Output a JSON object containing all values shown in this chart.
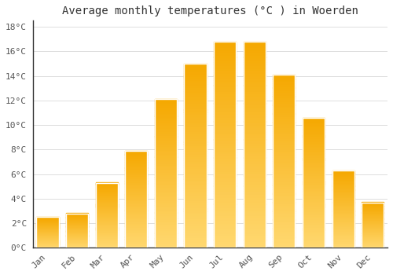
{
  "title": "Average monthly temperatures (°C ) in Woerden",
  "months": [
    "Jan",
    "Feb",
    "Mar",
    "Apr",
    "May",
    "Jun",
    "Jul",
    "Aug",
    "Sep",
    "Oct",
    "Nov",
    "Dec"
  ],
  "temperatures": [
    2.5,
    2.8,
    5.3,
    7.9,
    12.1,
    15.0,
    16.8,
    16.8,
    14.1,
    10.6,
    6.3,
    3.7
  ],
  "bar_color_top": "#F5A800",
  "bar_color_bottom": "#FFD870",
  "bar_edge_color": "#DDDDDD",
  "background_color": "#FFFFFF",
  "grid_color": "#DDDDDD",
  "title_fontsize": 10,
  "tick_fontsize": 8,
  "ylim": [
    0,
    18.5
  ],
  "yticks": [
    0,
    2,
    4,
    6,
    8,
    10,
    12,
    14,
    16,
    18
  ],
  "ytick_labels": [
    "0°C",
    "2°C",
    "4°C",
    "6°C",
    "8°C",
    "10°C",
    "12°C",
    "14°C",
    "16°C",
    "18°C"
  ]
}
